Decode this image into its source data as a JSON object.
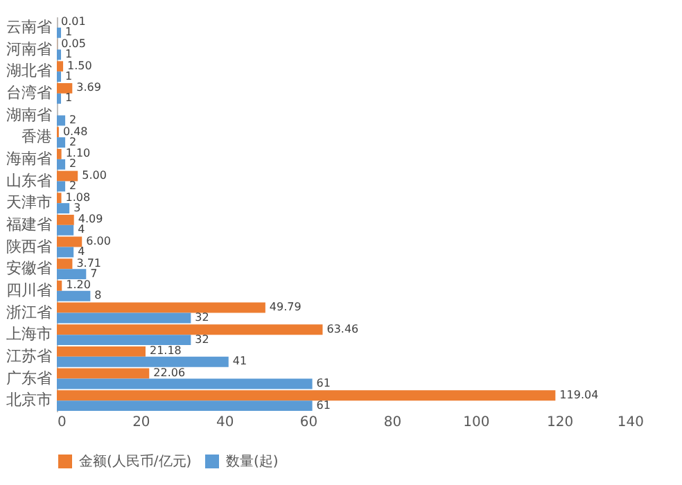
{
  "chart_data": {
    "type": "bar",
    "orientation": "horizontal",
    "categories": [
      "云南省",
      "河南省",
      "湖北省",
      "台湾省",
      "湖南省",
      "香港",
      "海南省",
      "山东省",
      "天津市",
      "福建省",
      "陕西省",
      "安徽省",
      "四川省",
      "浙江省",
      "上海市",
      "江苏省",
      "广东省",
      "北京市"
    ],
    "series": [
      {
        "name": "金额(人民币/亿元)",
        "color": "#ed7d31",
        "values": [
          0.01,
          0.05,
          1.5,
          3.69,
          null,
          0.48,
          1.1,
          5.0,
          1.08,
          4.09,
          6.0,
          3.71,
          1.2,
          49.79,
          63.46,
          21.18,
          22.06,
          119.04
        ],
        "value_labels": [
          "0.01",
          "0.05",
          "1.50",
          "3.69",
          null,
          "0.48",
          "1.10",
          "5.00",
          "1.08",
          "4.09",
          "6.00",
          "3.71",
          "1.20",
          "49.79",
          "63.46",
          "21.18",
          "22.06",
          "119.04"
        ]
      },
      {
        "name": "数量(起)",
        "color": "#5b9bd5",
        "values": [
          1,
          1,
          1,
          1,
          2,
          2,
          2,
          2,
          3,
          4,
          4,
          7,
          8,
          32,
          32,
          41,
          61,
          61
        ],
        "value_labels": [
          "1",
          "1",
          "1",
          "1",
          "2",
          "2",
          "2",
          "2",
          "3",
          "4",
          "4",
          "7",
          "8",
          "32",
          "32",
          "41",
          "61",
          "61"
        ]
      }
    ],
    "xlim": [
      0,
      140
    ],
    "xticks": [
      0,
      20,
      40,
      60,
      80,
      100,
      120,
      140
    ],
    "legend": "bottom"
  }
}
